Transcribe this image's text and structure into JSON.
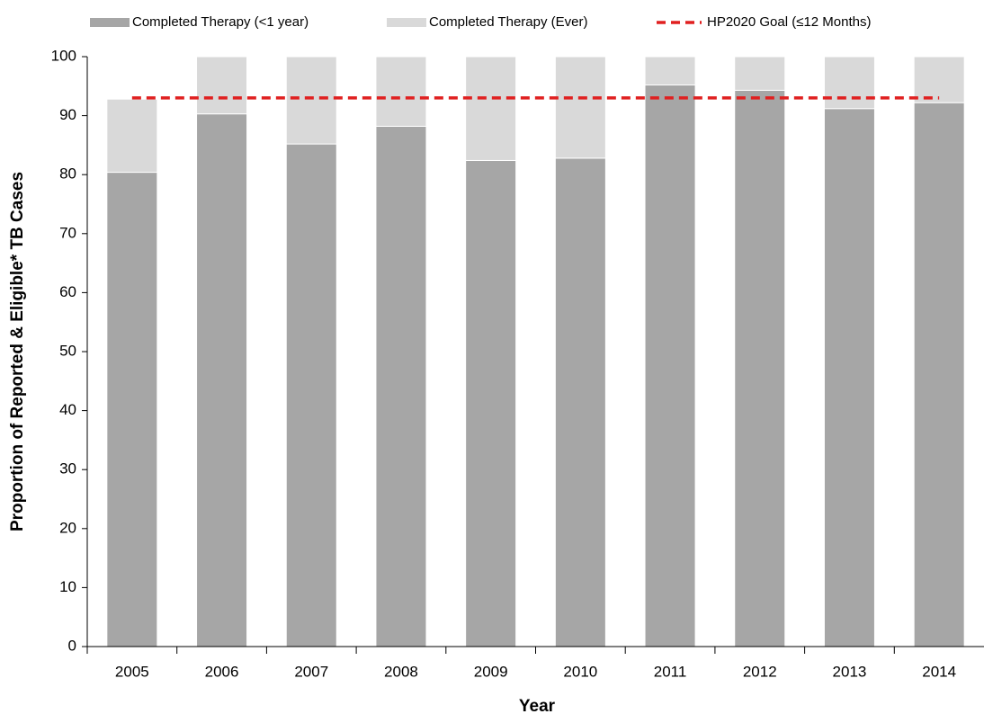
{
  "chart_data": {
    "type": "bar",
    "stacked": true,
    "xlabel": "Year",
    "ylabel": "Proportion of Reported & Eligible* TB Cases",
    "categories": [
      "2005",
      "2006",
      "2007",
      "2008",
      "2009",
      "2010",
      "2011",
      "2012",
      "2013",
      "2014"
    ],
    "series": [
      {
        "name": "Completed Therapy (<1 year)",
        "color": "#a6a6a6",
        "values": [
          80.4,
          90.3,
          85.2,
          88.2,
          82.4,
          82.8,
          95.2,
          94.3,
          91.2,
          92.2
        ]
      },
      {
        "name": "Completed Therapy (Ever)",
        "color": "#d9d9d9",
        "values": [
          12.4,
          9.7,
          14.8,
          11.8,
          17.6,
          17.2,
          4.8,
          5.7,
          8.8,
          7.8
        ]
      },
      {
        "name": "HP2020 Goal (≤12 Months)",
        "type": "line",
        "color": "#e02020",
        "dashed": true,
        "values": [
          93,
          93,
          93,
          93,
          93,
          93,
          93,
          93,
          93,
          93
        ]
      }
    ],
    "ylim": [
      0,
      100
    ],
    "yticks": [
      0,
      10,
      20,
      30,
      40,
      50,
      60,
      70,
      80,
      90,
      100
    ]
  }
}
